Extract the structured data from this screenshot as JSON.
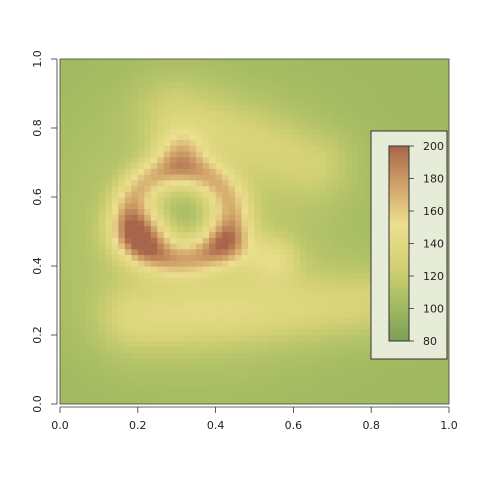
{
  "chart_data": {
    "type": "heatmap",
    "title": "",
    "xlabel": "",
    "ylabel": "",
    "xlim": [
      0,
      1
    ],
    "ylim": [
      0,
      1
    ],
    "x_ticks": [
      0.0,
      0.2,
      0.4,
      0.6,
      0.8,
      1.0
    ],
    "x_tick_labels": [
      "0.0",
      "0.2",
      "0.4",
      "0.6",
      "0.8",
      "1.0"
    ],
    "y_ticks": [
      0.0,
      0.2,
      0.4,
      0.6,
      0.8,
      1.0
    ],
    "y_tick_labels": [
      "0.0",
      "0.2",
      "0.4",
      "0.6",
      "0.8",
      "1.0"
    ],
    "grid": false,
    "grid_resolution": 60,
    "value_range": [
      80,
      200
    ],
    "color_ramp": [
      "#7c9e57",
      "#a7bd63",
      "#d6d276",
      "#ecdf8f",
      "#d1a268",
      "#a8654a"
    ],
    "legend": {
      "placement": "right",
      "ticks": [
        200,
        180,
        160,
        140,
        120,
        100,
        80
      ],
      "tick_labels": [
        "200",
        "180",
        "160",
        "140",
        "120",
        "100",
        "80"
      ],
      "background": "#e6ecd8"
    },
    "surface_features": [
      {
        "kind": "ring",
        "center": [
          0.31,
          0.55
        ],
        "radius": 0.13,
        "peak_value": 195
      },
      {
        "kind": "peak",
        "center": [
          0.21,
          0.49
        ],
        "peak_value": 200
      },
      {
        "kind": "peak",
        "center": [
          0.31,
          0.74
        ],
        "peak_value": 178
      },
      {
        "kind": "peak",
        "center": [
          0.44,
          0.46
        ],
        "peak_value": 172
      },
      {
        "kind": "peak",
        "center": [
          0.55,
          0.42
        ],
        "peak_value": 158
      },
      {
        "kind": "ridge",
        "from": [
          0.2,
          0.25
        ],
        "to": [
          0.85,
          0.3
        ],
        "peak_value": 145
      },
      {
        "kind": "ridge",
        "from": [
          0.3,
          0.85
        ],
        "to": [
          0.65,
          0.7
        ],
        "peak_value": 135
      }
    ],
    "base_level": 100
  }
}
